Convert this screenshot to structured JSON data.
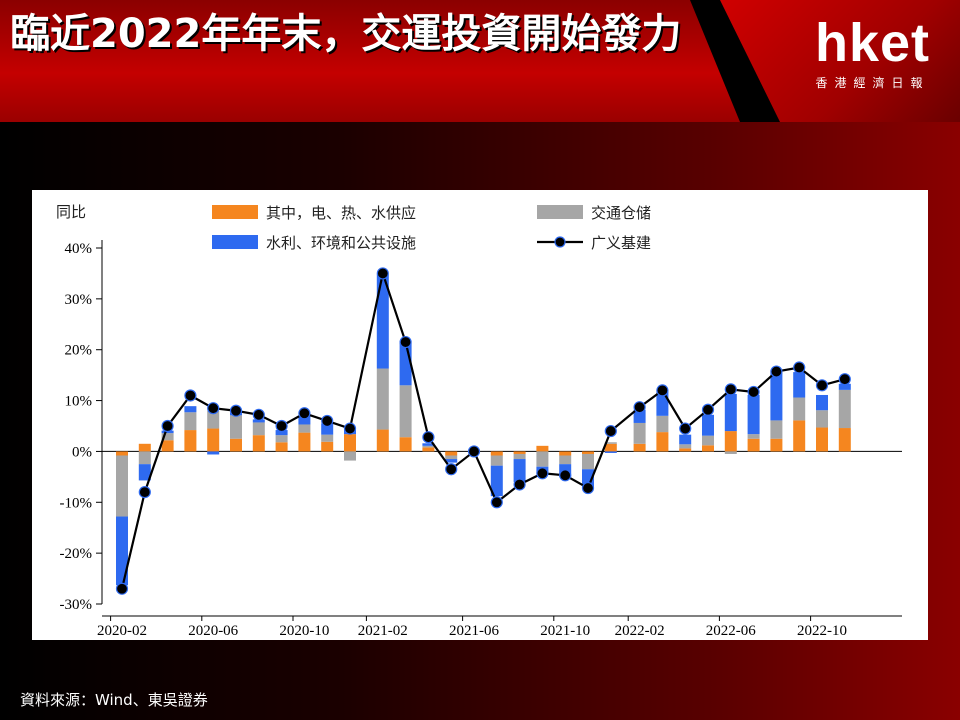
{
  "header": {
    "title": "臨近2022年年末，交運投資開始發力",
    "logo_main": "hket",
    "logo_sub": "香港經濟日報"
  },
  "footer": {
    "source": "資料來源：Wind、東吳證券"
  },
  "colors": {
    "energy": "#F5861F",
    "transport": "#A6A6A6",
    "water": "#2E6AF0",
    "broad": "#000000",
    "title_red": "#C40000"
  },
  "chart_data": {
    "type": "bar",
    "stacked": true,
    "y_unit_label": "同比",
    "ylim": [
      -30,
      40
    ],
    "yticks": [
      -30,
      -20,
      -10,
      0,
      10,
      20,
      30,
      40
    ],
    "ytick_labels": [
      "-30%",
      "-20%",
      "-10%",
      "0%",
      "10%",
      "20%",
      "30%",
      "40%"
    ],
    "xtick_labels": [
      "2020-02",
      "2020-06",
      "2020-10",
      "2021-02",
      "2021-06",
      "2021-10",
      "2022-02",
      "2022-06",
      "2022-10"
    ],
    "categories": [
      "2020-02",
      "2020-03",
      "2020-04",
      "2020-05",
      "2020-06",
      "2020-07",
      "2020-08",
      "2020-09",
      "2020-10",
      "2020-11",
      "2020-12",
      "2021-02",
      "2021-03",
      "2021-04",
      "2021-05",
      "2021-06",
      "2021-07",
      "2021-08",
      "2021-09",
      "2021-10",
      "2021-11",
      "2021-12",
      "2022-02",
      "2022-03",
      "2022-04",
      "2022-05",
      "2022-06",
      "2022-07",
      "2022-08",
      "2022-09",
      "2022-10",
      "2022-11"
    ],
    "legend": [
      {
        "key": "energy",
        "label": "其中，电、热、水供应"
      },
      {
        "key": "transport",
        "label": "交通仓储"
      },
      {
        "key": "water",
        "label": "水利、环境和公共设施"
      },
      {
        "key": "broad",
        "label": "广义基建"
      }
    ],
    "series": [
      {
        "name": "其中，电、热、水供应",
        "key": "energy",
        "values": [
          -0.8,
          1.5,
          2.2,
          4.2,
          4.5,
          2.5,
          3.2,
          1.8,
          3.7,
          1.9,
          3.4,
          4.3,
          2.8,
          0.8,
          -0.8,
          0.3,
          -0.8,
          -0.5,
          1.1,
          -0.8,
          -0.5,
          1.5,
          1.5,
          3.8,
          0.6,
          1.2,
          4.0,
          2.5,
          2.5,
          6.1,
          4.7,
          4.6
        ]
      },
      {
        "name": "交通仓储",
        "key": "transport",
        "values": [
          -12.0,
          -2.5,
          1.4,
          3.5,
          3.5,
          4.6,
          2.5,
          1.4,
          1.6,
          1.4,
          -1.8,
          12.0,
          10.2,
          0.3,
          -0.7,
          -0.3,
          -2.0,
          -1.0,
          -3.0,
          -1.7,
          -3.0,
          0.3,
          4.1,
          3.2,
          0.8,
          1.9,
          -0.5,
          0.9,
          3.6,
          4.5,
          3.4,
          7.5
        ]
      },
      {
        "name": "水利、环境和公共设施",
        "key": "water",
        "values": [
          -13.5,
          -3.2,
          0.5,
          1.2,
          -0.6,
          0.5,
          0.6,
          1.0,
          1.7,
          2.2,
          0.9,
          18.5,
          8.3,
          0.5,
          -0.7,
          0.0,
          -6.0,
          -4.5,
          -1.3,
          -2.5,
          -3.5,
          -0.3,
          2.6,
          4.8,
          1.9,
          4.1,
          7.3,
          7.7,
          9.4,
          5.0,
          3.0,
          1.2
        ]
      },
      {
        "name": "广义基建",
        "key": "broad",
        "type": "line",
        "values": [
          -27.0,
          -8.0,
          5.0,
          11.0,
          8.5,
          8.0,
          7.2,
          5.0,
          7.5,
          6.0,
          4.5,
          35.0,
          21.5,
          2.8,
          -3.5,
          0.0,
          -10.0,
          -6.5,
          -4.3,
          -4.7,
          -7.2,
          4.0,
          8.7,
          12.0,
          4.5,
          8.2,
          12.2,
          11.7,
          15.7,
          16.5,
          13.0,
          14.2
        ]
      }
    ]
  }
}
